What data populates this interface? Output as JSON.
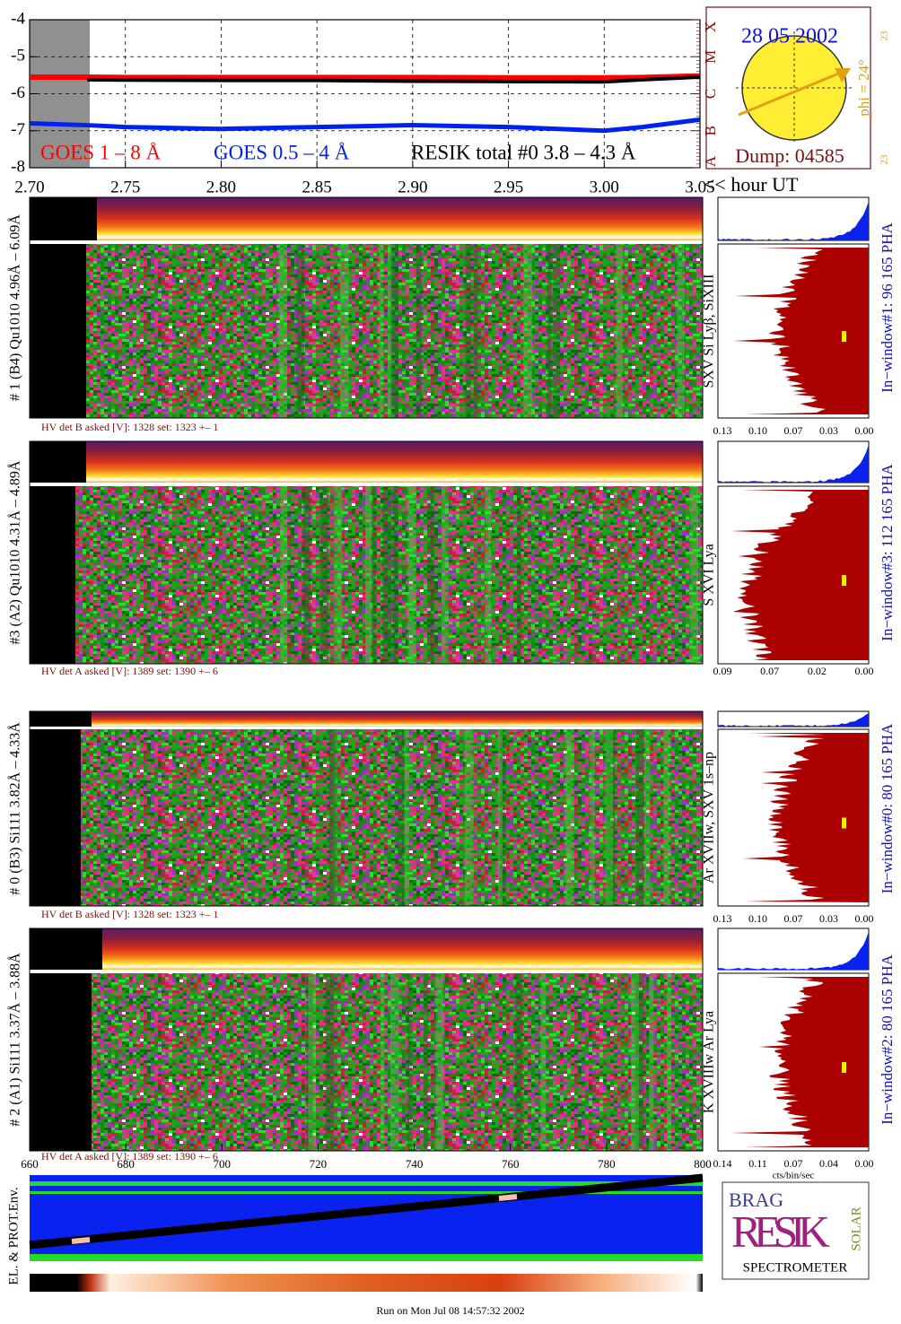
{
  "chart_data": {
    "type": "line",
    "x_label": "<< hour UT",
    "grid": true,
    "x": [
      2.7,
      2.73,
      2.75,
      2.8,
      2.85,
      2.9,
      2.95,
      3.0,
      3.02,
      3.05
    ],
    "series": [
      {
        "name": "GOES 1 – 8 Å",
        "color": "#ff0000",
        "values": [
          -5.55,
          -5.55,
          -5.56,
          -5.56,
          -5.56,
          -5.56,
          -5.57,
          -5.57,
          -5.56,
          -5.52
        ]
      },
      {
        "name": "GOES 0.5 – 4 Å",
        "color": "#0022ee",
        "values": [
          -6.8,
          -6.85,
          -6.9,
          -6.95,
          -6.9,
          -6.85,
          -6.9,
          -7.0,
          -6.9,
          -6.7
        ]
      },
      {
        "name": "RESIK total #0  3.8 – 4.3 Å",
        "color": "#000000",
        "values": [
          null,
          -5.62,
          -5.63,
          -5.64,
          -5.64,
          -5.66,
          -5.67,
          -5.68,
          -5.62,
          -5.55
        ]
      }
    ],
    "xlim": [
      2.7,
      3.05
    ],
    "xticks": [
      {
        "value": 2.7,
        "label": "2.70"
      },
      2.75,
      {
        "value": 2.8,
        "label": "2.80"
      },
      2.85,
      {
        "value": 2.9,
        "label": "2.90"
      },
      2.95,
      {
        "value": 3,
        "label": "3.00"
      },
      3.05
    ],
    "ylim": [
      -8,
      -4
    ],
    "yticks": [
      -4,
      -5,
      -6,
      -7,
      -8
    ],
    "y2lim": [
      -8,
      -4
    ],
    "y2ticks": [
      {
        "value": -4,
        "label": "X"
      },
      {
        "value": -5,
        "label": "M"
      },
      {
        "value": -6,
        "label": "C"
      },
      {
        "value": -7,
        "label": "B"
      },
      {
        "value": -8,
        "label": "A"
      }
    ]
  },
  "sun": {
    "date": "28 05 2002",
    "phi": "phi = 24°",
    "small_top": "23",
    "small_bottom": "23",
    "dump": "Dump: 04585"
  },
  "panels": [
    {
      "detector": "# 1 (B4) Qu1010 4.96Å – 6.09Å",
      "lines": "SXV  Si Lyβ, SiXIII",
      "window": "In−window#1:   96 165  PHA",
      "hv": "HV det B asked [V]:  1328 set:  1323  +–    1",
      "pha_ticks": [
        "0.13",
        "0.10",
        "0.07",
        "0.03",
        "0.00"
      ]
    },
    {
      "detector": "#3 (A2) Qu1010  4.31Å – 4.89Å",
      "lines": "S XVI Lya",
      "window": "In−window#3:  112 165  PHA",
      "hv": "HV det A asked [V]:  1389 set:  1390  +–    6",
      "pha_ticks": [
        "0.09",
        "0.07",
        "0.02",
        "0.00"
      ]
    },
    {
      "detector": "# 0 (B3) Si111  3.82Å – 4.33Å",
      "lines": "Ar XVIIw,  SXV 1s–np",
      "window": "In−window#0:   80 165  PHA",
      "hv": "HV det B asked [V]:  1328 set:  1323  +–    1",
      "pha_ticks": [
        "0.13",
        "0.10",
        "0.07",
        "0.03",
        "0.00"
      ]
    },
    {
      "detector": "# 2 (A1) Si111  3.37Å – 3.88Å",
      "lines": "K XVIIIw   Ar Lya",
      "window": "In−window#2:   80 165  PHA",
      "hv": "HV det A asked [V]:  1389 set:  1390  +–    6",
      "pha_ticks": [
        "0.14",
        "0.11",
        "0.07",
        "0.04",
        "0.00"
      ]
    }
  ],
  "panel_axis": {
    "xlim": [
      660,
      800
    ],
    "xticks": [
      660,
      680,
      700,
      720,
      740,
      760,
      780,
      800
    ]
  },
  "pha_unit": "cts/bin/sec",
  "env_label": "EL. & PROT.Env.",
  "logo": {
    "brag": "BRAG",
    "resik": "RESIK",
    "solar": "SOLAR",
    "spectrometer": "SPECTROMETER"
  },
  "footer": "Run on Mon Jul 08 14:57:32 2002"
}
